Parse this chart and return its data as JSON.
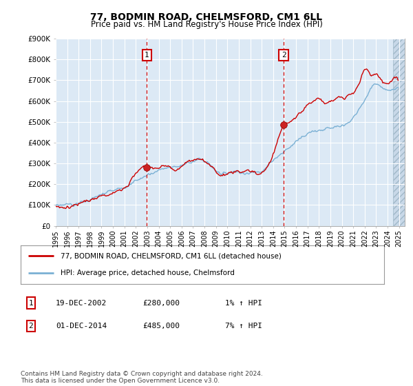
{
  "title": "77, BODMIN ROAD, CHELMSFORD, CM1 6LL",
  "subtitle": "Price paid vs. HM Land Registry's House Price Index (HPI)",
  "title_fontsize": 10,
  "subtitle_fontsize": 8.5,
  "plot_bg_color": "#dce9f5",
  "ylim": [
    0,
    900000
  ],
  "xlim_start": 1995.0,
  "xlim_end": 2025.5,
  "yticks": [
    0,
    100000,
    200000,
    300000,
    400000,
    500000,
    600000,
    700000,
    800000,
    900000
  ],
  "ytick_labels": [
    "£0",
    "£100K",
    "£200K",
    "£300K",
    "£400K",
    "£500K",
    "£600K",
    "£700K",
    "£800K",
    "£900K"
  ],
  "xticks": [
    1995,
    1996,
    1997,
    1998,
    1999,
    2000,
    2001,
    2002,
    2003,
    2004,
    2005,
    2006,
    2007,
    2008,
    2009,
    2010,
    2011,
    2012,
    2013,
    2014,
    2015,
    2016,
    2017,
    2018,
    2019,
    2020,
    2021,
    2022,
    2023,
    2024,
    2025
  ],
  "grid_color": "#ffffff",
  "hpi_line_color": "#7ab0d4",
  "price_line_color": "#cc0000",
  "vline_color": "#cc0000",
  "sale1_date": 2002.96,
  "sale1_price": 280000,
  "sale2_date": 2014.92,
  "sale2_price": 485000,
  "legend_label1": "77, BODMIN ROAD, CHELMSFORD, CM1 6LL (detached house)",
  "legend_label2": "HPI: Average price, detached house, Chelmsford",
  "table_rows": [
    {
      "num": "1",
      "date": "19-DEC-2002",
      "price": "£280,000",
      "hpi": "1% ↑ HPI"
    },
    {
      "num": "2",
      "date": "01-DEC-2014",
      "price": "£485,000",
      "hpi": "7% ↑ HPI"
    }
  ],
  "footnote": "Contains HM Land Registry data © Crown copyright and database right 2024.\nThis data is licensed under the Open Government Licence v3.0."
}
